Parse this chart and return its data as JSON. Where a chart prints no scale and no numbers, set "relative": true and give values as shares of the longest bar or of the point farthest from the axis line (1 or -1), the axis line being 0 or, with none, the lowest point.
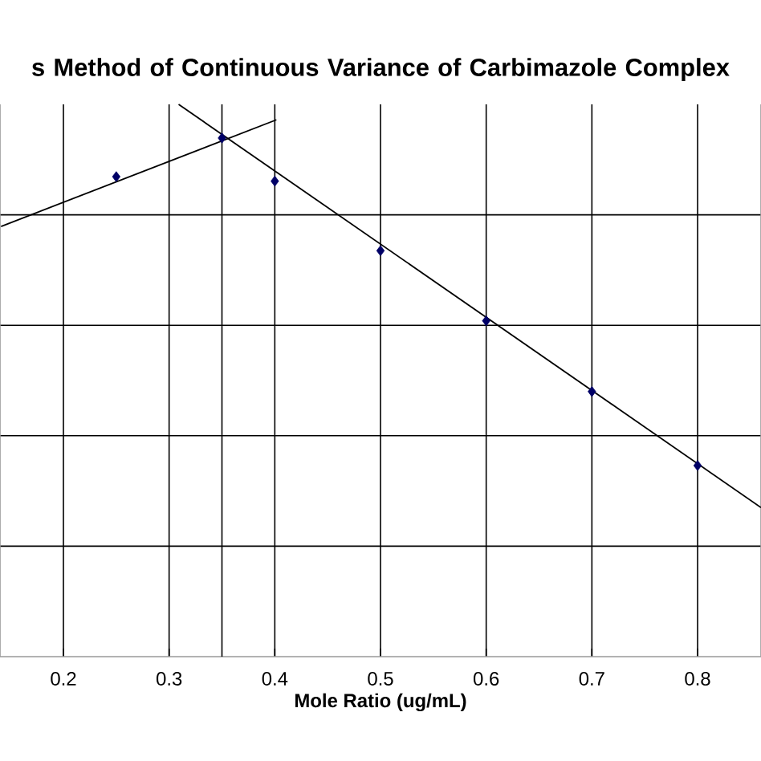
{
  "chart_data": {
    "type": "scatter",
    "title": "s Method of Continuous Variance of Carbimazole Complex",
    "xlabel": "Mole Ratio (ug/mL)",
    "relative": true,
    "xlim": [
      0.14,
      0.86
    ],
    "xticks": [
      0.2,
      0.3,
      0.4,
      0.5,
      0.6,
      0.7,
      0.8
    ],
    "grid": true,
    "marker": "diamond",
    "series": [
      {
        "color": "#000066",
        "x": [
          0.25,
          0.35,
          0.4,
          0.5,
          0.6,
          0.7,
          0.8
        ],
        "values": [
          0.869,
          0.939,
          0.861,
          0.735,
          0.608,
          0.48,
          0.346
        ]
      },
      {
        "type": "line",
        "color": "#000000",
        "marker": "none",
        "line_style": "solid",
        "x": [
          0.141,
          0.4015
        ],
        "values": [
          0.779,
          0.972
        ]
      },
      {
        "type": "line",
        "color": "#000000",
        "marker": "none",
        "line_style": "solid",
        "x": [
          0.309,
          0.86
        ],
        "values": [
          1.0,
          0.27
        ]
      }
    ],
    "ref_lines": [
      {
        "axis": "x",
        "value": 0.35,
        "color": "#000000"
      }
    ]
  }
}
